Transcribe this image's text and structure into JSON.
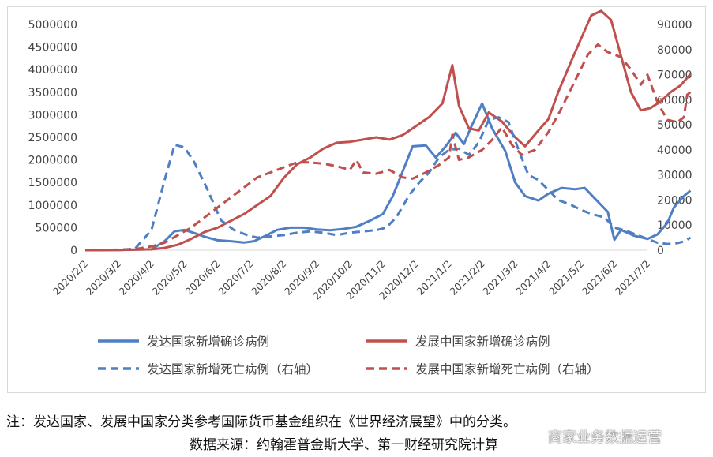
{
  "chart_data": {
    "type": "line",
    "x": [
      "2020/2/2",
      "2020/3/2",
      "2020/4/2",
      "2020/5/2",
      "2020/6/2",
      "2020/7/2",
      "2020/8/2",
      "2020/9/2",
      "2020/10/2",
      "2020/11/2",
      "2020/12/2",
      "2021/1/2",
      "2021/2/2",
      "2021/3/2",
      "2021/4/2",
      "2021/5/2",
      "2021/6/2",
      "2021/7/2"
    ],
    "y_left": {
      "range": [
        0,
        5000000
      ],
      "ticks": [
        "0",
        "500000",
        "1000000",
        "1500000",
        "2000000",
        "2500000",
        "3000000",
        "3500000",
        "4000000",
        "4500000",
        "5000000"
      ]
    },
    "y_right": {
      "range": [
        0,
        90000
      ],
      "ticks": [
        "0",
        "10000",
        "20000",
        "30000",
        "40000",
        "50000",
        "60000",
        "70000",
        "80000",
        "90000"
      ]
    },
    "series": [
      {
        "name": "发达国家新增确诊病例",
        "axis": "left",
        "style": "solid",
        "color": "#4e7fc4",
        "points": [
          [
            0,
            0
          ],
          [
            1,
            5000
          ],
          [
            2,
            20000
          ],
          [
            2.4,
            200000
          ],
          [
            2.7,
            420000
          ],
          [
            3.0,
            450000
          ],
          [
            3.3,
            380000
          ],
          [
            3.6,
            300000
          ],
          [
            4.0,
            220000
          ],
          [
            4.4,
            200000
          ],
          [
            4.8,
            170000
          ],
          [
            5.1,
            200000
          ],
          [
            5.4,
            300000
          ],
          [
            5.8,
            450000
          ],
          [
            6.2,
            500000
          ],
          [
            6.6,
            500000
          ],
          [
            7.0,
            460000
          ],
          [
            7.4,
            440000
          ],
          [
            7.8,
            470000
          ],
          [
            8.2,
            520000
          ],
          [
            8.6,
            650000
          ],
          [
            9.0,
            800000
          ],
          [
            9.3,
            1200000
          ],
          [
            9.6,
            1750000
          ],
          [
            9.9,
            2300000
          ],
          [
            10.3,
            2320000
          ],
          [
            10.6,
            2050000
          ],
          [
            10.9,
            2300000
          ],
          [
            11.2,
            2600000
          ],
          [
            11.45,
            2350000
          ],
          [
            11.65,
            2700000
          ],
          [
            12.0,
            3250000
          ],
          [
            12.3,
            2700000
          ],
          [
            12.7,
            2200000
          ],
          [
            13.0,
            1500000
          ],
          [
            13.3,
            1200000
          ],
          [
            13.7,
            1100000
          ],
          [
            14.0,
            1250000
          ],
          [
            14.4,
            1380000
          ],
          [
            14.8,
            1350000
          ],
          [
            15.1,
            1380000
          ],
          [
            15.4,
            1150000
          ],
          [
            15.8,
            850000
          ],
          [
            16.0,
            230000
          ],
          [
            16.2,
            450000
          ],
          [
            16.6,
            320000
          ],
          [
            17.0,
            250000
          ],
          [
            17.3,
            350000
          ],
          [
            17.6,
            600000
          ],
          [
            17.8,
            950000
          ],
          [
            18.1,
            1200000
          ],
          [
            18.3,
            1320000
          ]
        ]
      },
      {
        "name": "发展中国家新增确诊病例",
        "axis": "left",
        "style": "solid",
        "color": "#c0504d",
        "points": [
          [
            0,
            0
          ],
          [
            1,
            5000
          ],
          [
            2,
            20000
          ],
          [
            2.4,
            50000
          ],
          [
            2.8,
            120000
          ],
          [
            3.2,
            250000
          ],
          [
            3.6,
            400000
          ],
          [
            4.0,
            500000
          ],
          [
            4.4,
            650000
          ],
          [
            4.8,
            800000
          ],
          [
            5.2,
            1000000
          ],
          [
            5.6,
            1200000
          ],
          [
            6.0,
            1600000
          ],
          [
            6.4,
            1900000
          ],
          [
            6.8,
            2050000
          ],
          [
            7.2,
            2250000
          ],
          [
            7.6,
            2380000
          ],
          [
            8.0,
            2400000
          ],
          [
            8.4,
            2450000
          ],
          [
            8.8,
            2500000
          ],
          [
            9.2,
            2450000
          ],
          [
            9.6,
            2550000
          ],
          [
            10.0,
            2750000
          ],
          [
            10.4,
            2950000
          ],
          [
            10.8,
            3250000
          ],
          [
            11.1,
            4100000
          ],
          [
            11.3,
            3200000
          ],
          [
            11.6,
            2700000
          ],
          [
            11.9,
            2650000
          ],
          [
            12.2,
            3050000
          ],
          [
            12.6,
            2850000
          ],
          [
            13.0,
            2500000
          ],
          [
            13.3,
            2300000
          ],
          [
            13.7,
            2650000
          ],
          [
            14.0,
            2900000
          ],
          [
            14.3,
            3500000
          ],
          [
            14.7,
            4200000
          ],
          [
            15.0,
            4700000
          ],
          [
            15.3,
            5200000
          ],
          [
            15.6,
            5300000
          ],
          [
            15.9,
            5100000
          ],
          [
            16.2,
            4300000
          ],
          [
            16.5,
            3500000
          ],
          [
            16.8,
            3100000
          ],
          [
            17.1,
            3150000
          ],
          [
            17.4,
            3300000
          ],
          [
            17.7,
            3500000
          ],
          [
            18.0,
            3650000
          ],
          [
            18.3,
            3900000
          ]
        ]
      },
      {
        "name": "发达国家新增死亡病例（右轴）",
        "axis": "right",
        "style": "dashed",
        "color": "#4e7fc4",
        "points": [
          [
            0,
            0
          ],
          [
            1,
            200
          ],
          [
            1.5,
            500
          ],
          [
            2.0,
            8000
          ],
          [
            2.4,
            28000
          ],
          [
            2.7,
            42000
          ],
          [
            3.0,
            41000
          ],
          [
            3.3,
            35000
          ],
          [
            3.7,
            24000
          ],
          [
            4.1,
            12000
          ],
          [
            4.5,
            8000
          ],
          [
            4.9,
            6000
          ],
          [
            5.2,
            5000
          ],
          [
            5.6,
            5500
          ],
          [
            6.0,
            6000
          ],
          [
            6.4,
            7000
          ],
          [
            6.8,
            7500
          ],
          [
            7.2,
            7000
          ],
          [
            7.6,
            6000
          ],
          [
            8.0,
            7000
          ],
          [
            8.4,
            7500
          ],
          [
            8.8,
            8000
          ],
          [
            9.1,
            9000
          ],
          [
            9.4,
            13000
          ],
          [
            9.8,
            22000
          ],
          [
            10.1,
            27000
          ],
          [
            10.4,
            31000
          ],
          [
            10.7,
            37000
          ],
          [
            11.0,
            40000
          ],
          [
            11.3,
            40500
          ],
          [
            11.6,
            38000
          ],
          [
            11.9,
            43000
          ],
          [
            12.2,
            52000
          ],
          [
            12.5,
            53000
          ],
          [
            12.8,
            51000
          ],
          [
            13.1,
            40000
          ],
          [
            13.4,
            30000
          ],
          [
            13.7,
            28000
          ],
          [
            14.0,
            24000
          ],
          [
            14.3,
            20000
          ],
          [
            14.7,
            18000
          ],
          [
            15.0,
            16000
          ],
          [
            15.3,
            14500
          ],
          [
            15.7,
            13000
          ],
          [
            16.0,
            9000
          ],
          [
            16.3,
            8000
          ],
          [
            16.7,
            6000
          ],
          [
            17.0,
            4500
          ],
          [
            17.3,
            3000
          ],
          [
            17.6,
            2500
          ],
          [
            17.9,
            2800
          ],
          [
            18.1,
            3500
          ],
          [
            18.3,
            5000
          ]
        ]
      },
      {
        "name": "发展中国家新增死亡病例（右轴）",
        "axis": "right",
        "style": "dashed",
        "color": "#c0504d",
        "points": [
          [
            0,
            0
          ],
          [
            1,
            200
          ],
          [
            1.5,
            400
          ],
          [
            2.0,
            1500
          ],
          [
            2.4,
            3000
          ],
          [
            2.8,
            6000
          ],
          [
            3.2,
            9000
          ],
          [
            3.6,
            13000
          ],
          [
            4.0,
            17000
          ],
          [
            4.4,
            21000
          ],
          [
            4.8,
            25000
          ],
          [
            5.2,
            29000
          ],
          [
            5.6,
            31000
          ],
          [
            6.0,
            33000
          ],
          [
            6.4,
            35000
          ],
          [
            6.8,
            35000
          ],
          [
            7.2,
            34500
          ],
          [
            7.6,
            33500
          ],
          [
            8.0,
            32000
          ],
          [
            8.2,
            36000
          ],
          [
            8.4,
            31000
          ],
          [
            8.8,
            30500
          ],
          [
            9.2,
            32000
          ],
          [
            9.6,
            29000
          ],
          [
            9.9,
            28500
          ],
          [
            10.3,
            31000
          ],
          [
            10.7,
            34000
          ],
          [
            11.0,
            37000
          ],
          [
            11.1,
            46000
          ],
          [
            11.3,
            36000
          ],
          [
            11.6,
            37000
          ],
          [
            12.0,
            40000
          ],
          [
            12.3,
            44000
          ],
          [
            12.6,
            49000
          ],
          [
            12.9,
            42000
          ],
          [
            13.2,
            38000
          ],
          [
            13.6,
            40000
          ],
          [
            14.0,
            47000
          ],
          [
            14.3,
            54000
          ],
          [
            14.6,
            62000
          ],
          [
            14.9,
            70000
          ],
          [
            15.2,
            78000
          ],
          [
            15.5,
            82000
          ],
          [
            15.8,
            79000
          ],
          [
            16.2,
            77000
          ],
          [
            16.5,
            72000
          ],
          [
            16.8,
            66000
          ],
          [
            17.0,
            70000
          ],
          [
            17.3,
            59000
          ],
          [
            17.6,
            52000
          ],
          [
            17.9,
            51000
          ],
          [
            18.1,
            53000
          ],
          [
            18.2,
            62000
          ],
          [
            18.3,
            63000
          ]
        ]
      }
    ]
  },
  "notes": {
    "line1": "注：发达国家、发展中国家分类参考国际货币基金组织在《世界经济展望》中的分类。",
    "line2": "数据来源：约翰霍普金斯大学、第一财经研究院计算"
  },
  "watermark": "商家业务数据运营",
  "colors": {
    "developed": "#4e7fc4",
    "developing": "#c0504d",
    "grid": "#d9d9d9"
  }
}
